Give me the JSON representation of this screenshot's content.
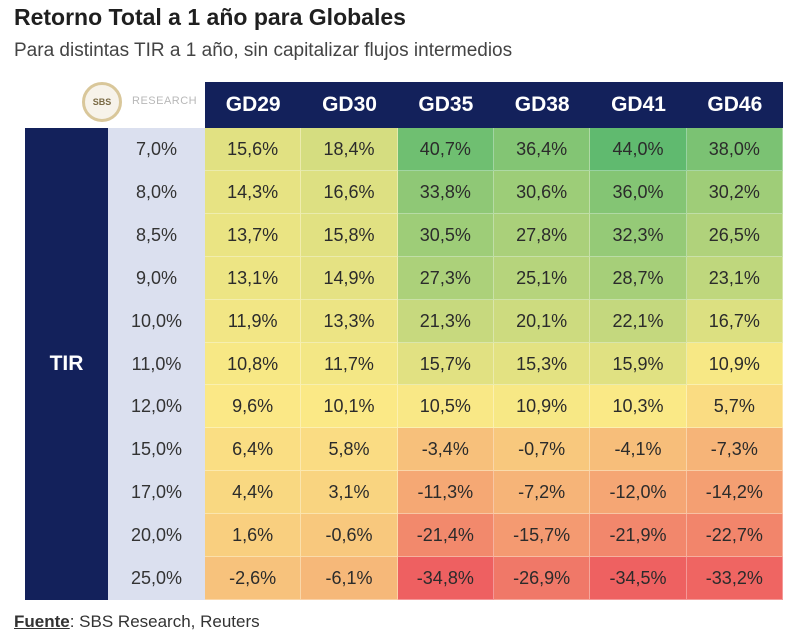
{
  "header": {
    "title": "Retorno Total a 1 año para Globales",
    "subtitle": "Para distintas TIR a 1 año, sin capitalizar flujos intermedios"
  },
  "logo": {
    "mark": "SBS",
    "word": "RESEARCH"
  },
  "source": {
    "label": "Fuente",
    "text": ": SBS Research, Reuters"
  },
  "chart_data": {
    "type": "heatmap",
    "row_header": "TIR",
    "columns": [
      "GD29",
      "GD30",
      "GD35",
      "GD38",
      "GD41",
      "GD46"
    ],
    "rows": [
      "7,0%",
      "8,0%",
      "8,5%",
      "9,0%",
      "10,0%",
      "11,0%",
      "12,0%",
      "15,0%",
      "17,0%",
      "20,0%",
      "25,0%"
    ],
    "values": [
      [
        15.6,
        18.4,
        40.7,
        36.4,
        44.0,
        38.0
      ],
      [
        14.3,
        16.6,
        33.8,
        30.6,
        36.0,
        30.2
      ],
      [
        13.7,
        15.8,
        30.5,
        27.8,
        32.3,
        26.5
      ],
      [
        13.1,
        14.9,
        27.3,
        25.1,
        28.7,
        23.1
      ],
      [
        11.9,
        13.3,
        21.3,
        20.1,
        22.1,
        16.7
      ],
      [
        10.8,
        11.7,
        15.7,
        15.3,
        15.9,
        10.9
      ],
      [
        9.6,
        10.1,
        10.5,
        10.9,
        10.3,
        5.7
      ],
      [
        6.4,
        5.8,
        -3.4,
        -0.7,
        -4.1,
        -7.3
      ],
      [
        4.4,
        3.1,
        -11.3,
        -7.2,
        -12.0,
        -14.2
      ],
      [
        1.6,
        -0.6,
        -21.4,
        -15.7,
        -21.9,
        -22.7
      ],
      [
        -2.6,
        -6.1,
        -34.8,
        -26.9,
        -34.5,
        -33.2
      ]
    ],
    "labels": [
      [
        "15,6%",
        "18,4%",
        "40,7%",
        "36,4%",
        "44,0%",
        "38,0%"
      ],
      [
        "14,3%",
        "16,6%",
        "33,8%",
        "30,6%",
        "36,0%",
        "30,2%"
      ],
      [
        "13,7%",
        "15,8%",
        "30,5%",
        "27,8%",
        "32,3%",
        "26,5%"
      ],
      [
        "13,1%",
        "14,9%",
        "27,3%",
        "25,1%",
        "28,7%",
        "23,1%"
      ],
      [
        "11,9%",
        "13,3%",
        "21,3%",
        "20,1%",
        "22,1%",
        "16,7%"
      ],
      [
        "10,8%",
        "11,7%",
        "15,7%",
        "15,3%",
        "15,9%",
        "10,9%"
      ],
      [
        "9,6%",
        "10,1%",
        "10,5%",
        "10,9%",
        "10,3%",
        "5,7%"
      ],
      [
        "6,4%",
        "5,8%",
        "-3,4%",
        "-0,7%",
        "-4,1%",
        "-7,3%"
      ],
      [
        "4,4%",
        "3,1%",
        "-11,3%",
        "-7,2%",
        "-12,0%",
        "-14,2%"
      ],
      [
        "1,6%",
        "-0,6%",
        "-21,4%",
        "-15,7%",
        "-21,9%",
        "-22,7%"
      ],
      [
        "-2,6%",
        "-6,1%",
        "-34,8%",
        "-26,9%",
        "-34,5%",
        "-33,2%"
      ]
    ],
    "color_scale": {
      "low": "#ee5f61",
      "mid": "#fbe986",
      "high": "#60ba6f",
      "min": -35,
      "mid_value": 10,
      "max": 44
    }
  }
}
